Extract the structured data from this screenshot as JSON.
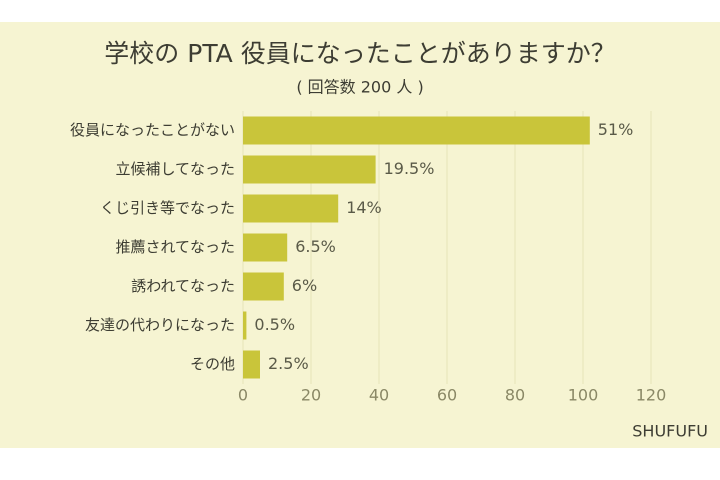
{
  "chart_data": {
    "type": "hbar",
    "title": "学校の PTA 役員になったことがありますか？",
    "subtitle": "( 回答数 200 人 )",
    "source": "SHUFUFU",
    "categories": [
      "役員になったことがない",
      "立候補してなった",
      "くじ引き等でなった",
      "推薦されてなった",
      "誘われてなった",
      "友達の代わりになった",
      "その他"
    ],
    "values": [
      102,
      39,
      28,
      13,
      12,
      1,
      5
    ],
    "value_labels": [
      "51%",
      "19.5%",
      "14%",
      "6.5%",
      "6%",
      "0.5%",
      "2.5%"
    ],
    "color": "#c9c53a",
    "xlim": [
      0,
      120
    ],
    "xticks": [
      0,
      20,
      40,
      60,
      80,
      100,
      120
    ],
    "grid": true
  }
}
